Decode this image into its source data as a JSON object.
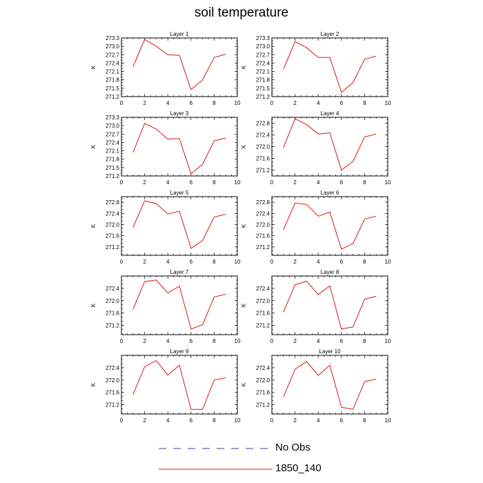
{
  "figure": {
    "title": "soil temperature"
  },
  "legend": {
    "items": [
      {
        "label": "No Obs",
        "style": "dashed",
        "color": "#3b3bb0"
      },
      {
        "label": "1850_140",
        "style": "solid",
        "color": "#e01010"
      }
    ]
  },
  "chart_data": [
    {
      "type": "line",
      "title": "Layer 1",
      "xlabel": "",
      "ylabel": "K",
      "xlim": [
        0,
        10
      ],
      "ylim": [
        271.2,
        273.3
      ],
      "xticks": [
        0,
        2,
        4,
        6,
        8,
        10
      ],
      "yticks": [
        271.2,
        271.5,
        271.8,
        272.1,
        272.4,
        272.7,
        273.0,
        273.3
      ],
      "ytick_labels": [
        "271.2",
        "271.5",
        "271.8",
        "272.1",
        "272.4",
        "272.7",
        "273.0",
        "273.3"
      ],
      "series": [
        {
          "name": "1850_140",
          "color": "#e01010",
          "x": [
            1,
            2,
            3,
            4,
            5,
            6,
            7,
            8,
            9
          ],
          "y": [
            272.27,
            273.25,
            273.0,
            272.7,
            272.68,
            271.45,
            271.8,
            272.6,
            272.72
          ]
        }
      ]
    },
    {
      "type": "line",
      "title": "Layer 2",
      "xlabel": "",
      "ylabel": "K",
      "xlim": [
        0,
        10
      ],
      "ylim": [
        271.2,
        273.3
      ],
      "xticks": [
        0,
        2,
        4,
        6,
        8,
        10
      ],
      "yticks": [
        271.2,
        271.5,
        271.8,
        272.1,
        272.4,
        272.7,
        273.0,
        273.3
      ],
      "ytick_labels": [
        "271.2",
        "271.5",
        "271.8",
        "272.1",
        "272.4",
        "272.7",
        "273.0",
        "273.3"
      ],
      "series": [
        {
          "name": "1850_140",
          "color": "#e01010",
          "x": [
            1,
            2,
            3,
            4,
            5,
            6,
            7,
            8,
            9
          ],
          "y": [
            272.18,
            273.17,
            272.95,
            272.6,
            272.6,
            271.35,
            271.7,
            272.54,
            272.65
          ]
        }
      ]
    },
    {
      "type": "line",
      "title": "Layer 3",
      "xlabel": "",
      "ylabel": "K",
      "xlim": [
        0,
        10
      ],
      "ylim": [
        271.2,
        273.3
      ],
      "xticks": [
        0,
        2,
        4,
        6,
        8,
        10
      ],
      "yticks": [
        271.2,
        271.5,
        271.8,
        272.1,
        272.4,
        272.7,
        273.0,
        273.3
      ],
      "ytick_labels": [
        "271.2",
        "271.5",
        "271.8",
        "272.1",
        "272.4",
        "272.7",
        "273.0",
        "273.3"
      ],
      "series": [
        {
          "name": "1850_140",
          "color": "#e01010",
          "x": [
            1,
            2,
            3,
            4,
            5,
            6,
            7,
            8,
            9
          ],
          "y": [
            272.04,
            273.08,
            272.88,
            272.52,
            272.54,
            271.28,
            271.62,
            272.46,
            272.56
          ]
        }
      ]
    },
    {
      "type": "line",
      "title": "Layer 4",
      "xlabel": "",
      "ylabel": "K",
      "xlim": [
        0,
        10
      ],
      "ylim": [
        271.0,
        273.0
      ],
      "xticks": [
        0,
        2,
        4,
        6,
        8,
        10
      ],
      "yticks": [
        271.2,
        271.6,
        272.0,
        272.4,
        272.8
      ],
      "ytick_labels": [
        "271.2",
        "271.6",
        "272.0",
        "272.4",
        "272.8"
      ],
      "series": [
        {
          "name": "1850_140",
          "color": "#e01010",
          "x": [
            1,
            2,
            3,
            4,
            5,
            6,
            7,
            8,
            9
          ],
          "y": [
            271.97,
            272.95,
            272.75,
            272.43,
            272.47,
            271.2,
            271.5,
            272.33,
            272.43
          ]
        }
      ]
    },
    {
      "type": "line",
      "title": "Layer 5",
      "xlabel": "",
      "ylabel": "K",
      "xlim": [
        0,
        10
      ],
      "ylim": [
        270.9,
        273.0
      ],
      "xticks": [
        0,
        2,
        4,
        6,
        8,
        10
      ],
      "yticks": [
        271.2,
        271.6,
        272.0,
        272.4,
        272.8
      ],
      "ytick_labels": [
        "271.2",
        "271.6",
        "272.0",
        "272.4",
        "272.8"
      ],
      "series": [
        {
          "name": "1850_140",
          "color": "#e01010",
          "x": [
            1,
            2,
            3,
            4,
            5,
            6,
            7,
            8,
            9
          ],
          "y": [
            271.9,
            272.85,
            272.75,
            272.38,
            272.48,
            271.15,
            271.43,
            272.27,
            272.37
          ]
        }
      ]
    },
    {
      "type": "line",
      "title": "Layer 6",
      "xlabel": "",
      "ylabel": "K",
      "xlim": [
        0,
        10
      ],
      "ylim": [
        270.9,
        273.0
      ],
      "xticks": [
        0,
        2,
        4,
        6,
        8,
        10
      ],
      "yticks": [
        271.2,
        271.6,
        272.0,
        272.4,
        272.8
      ],
      "ytick_labels": [
        "271.2",
        "271.6",
        "272.0",
        "272.4",
        "272.8"
      ],
      "series": [
        {
          "name": "1850_140",
          "color": "#e01010",
          "x": [
            1,
            2,
            3,
            4,
            5,
            6,
            7,
            8,
            9
          ],
          "y": [
            271.82,
            272.77,
            272.72,
            272.3,
            272.45,
            271.12,
            271.32,
            272.2,
            272.3
          ]
        }
      ]
    },
    {
      "type": "line",
      "title": "Layer 7",
      "xlabel": "",
      "ylabel": "K",
      "xlim": [
        0,
        10
      ],
      "ylim": [
        270.9,
        272.8
      ],
      "xticks": [
        0,
        2,
        4,
        6,
        8,
        10
      ],
      "yticks": [
        271.2,
        271.6,
        272.0,
        272.4
      ],
      "ytick_labels": [
        "271.2",
        "271.6",
        "272.0",
        "272.4"
      ],
      "series": [
        {
          "name": "1850_140",
          "color": "#e01010",
          "x": [
            1,
            2,
            3,
            4,
            5,
            6,
            7,
            8,
            9
          ],
          "y": [
            271.72,
            272.62,
            272.67,
            272.25,
            272.47,
            271.08,
            271.22,
            272.12,
            272.21
          ]
        }
      ]
    },
    {
      "type": "line",
      "title": "Layer 8",
      "xlabel": "",
      "ylabel": "K",
      "xlim": [
        0,
        10
      ],
      "ylim": [
        270.9,
        272.8
      ],
      "xticks": [
        0,
        2,
        4,
        6,
        8,
        10
      ],
      "yticks": [
        271.2,
        271.6,
        272.0,
        272.4
      ],
      "ytick_labels": [
        "271.2",
        "271.6",
        "272.0",
        "272.4"
      ],
      "series": [
        {
          "name": "1850_140",
          "color": "#e01010",
          "x": [
            1,
            2,
            3,
            4,
            5,
            6,
            7,
            8,
            9
          ],
          "y": [
            271.63,
            272.52,
            272.63,
            272.2,
            272.48,
            271.08,
            271.15,
            272.05,
            272.14
          ]
        }
      ]
    },
    {
      "type": "line",
      "title": "Layer 9",
      "xlabel": "",
      "ylabel": "K",
      "xlim": [
        0,
        10
      ],
      "ylim": [
        270.9,
        272.8
      ],
      "xticks": [
        0,
        2,
        4,
        6,
        8,
        10
      ],
      "yticks": [
        271.2,
        271.6,
        272.0,
        272.4
      ],
      "ytick_labels": [
        "271.2",
        "271.6",
        "272.0",
        "272.4"
      ],
      "series": [
        {
          "name": "1850_140",
          "color": "#e01010",
          "x": [
            1,
            2,
            3,
            4,
            5,
            6,
            7,
            8,
            9
          ],
          "y": [
            271.53,
            272.43,
            272.63,
            272.16,
            272.48,
            271.05,
            271.05,
            272.0,
            272.07
          ]
        }
      ]
    },
    {
      "type": "line",
      "title": "Layer 10",
      "xlabel": "",
      "ylabel": "K",
      "xlim": [
        0,
        10
      ],
      "ylim": [
        270.9,
        272.8
      ],
      "xticks": [
        0,
        2,
        4,
        6,
        8,
        10
      ],
      "yticks": [
        271.2,
        271.6,
        272.0,
        272.4
      ],
      "ytick_labels": [
        "271.2",
        "271.6",
        "272.0",
        "272.4"
      ],
      "series": [
        {
          "name": "1850_140",
          "color": "#e01010",
          "x": [
            1,
            2,
            3,
            4,
            5,
            6,
            7,
            8,
            9
          ],
          "y": [
            271.45,
            272.35,
            272.6,
            272.15,
            272.48,
            271.12,
            271.05,
            271.95,
            272.03
          ]
        }
      ]
    }
  ]
}
